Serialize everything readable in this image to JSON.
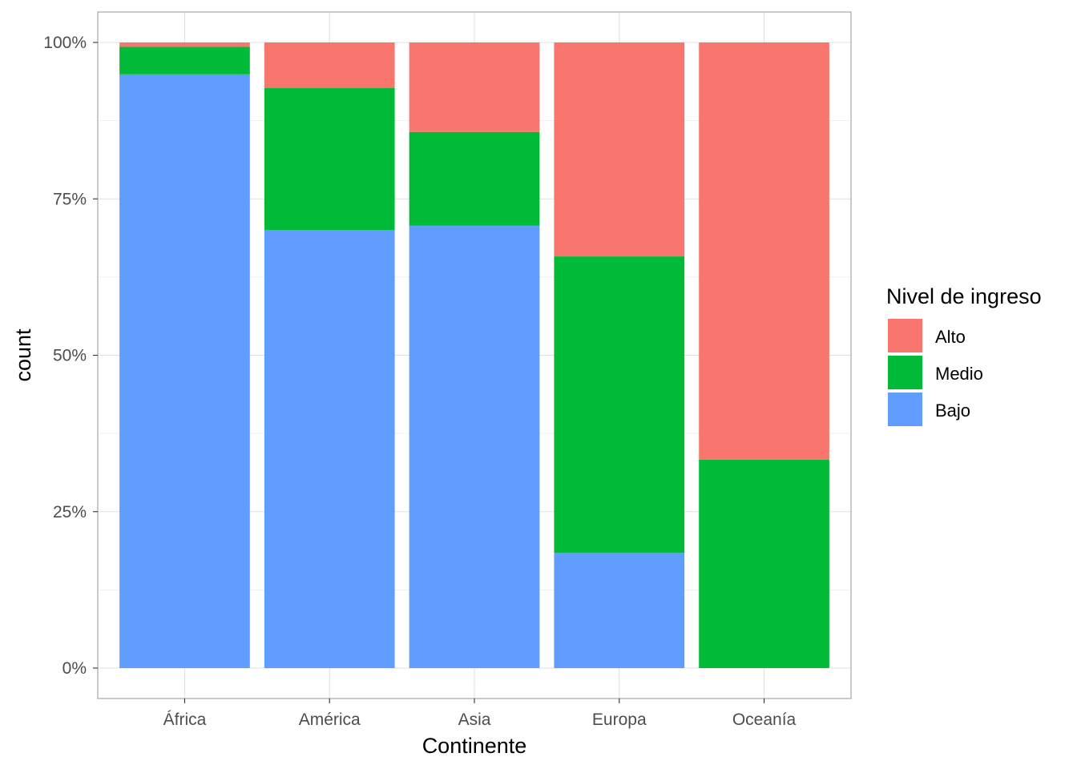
{
  "chart_data": {
    "type": "bar",
    "stacked": true,
    "normalized": true,
    "xlabel": "Continente",
    "ylabel": "count",
    "ylim": [
      0,
      1
    ],
    "y_ticks": [
      {
        "value": 0,
        "label": "0%"
      },
      {
        "value": 0.25,
        "label": "25%"
      },
      {
        "value": 0.5,
        "label": "50%"
      },
      {
        "value": 0.75,
        "label": "75%"
      },
      {
        "value": 1,
        "label": "100%"
      }
    ],
    "categories": [
      "África",
      "América",
      "Asia",
      "Europa",
      "Oceanía"
    ],
    "series": [
      {
        "name": "Bajo",
        "color": "#619CFF",
        "values": [
          0.949,
          0.7,
          0.707,
          0.184,
          0.0
        ]
      },
      {
        "name": "Medio",
        "color": "#00BA38",
        "values": [
          0.044,
          0.227,
          0.15,
          0.474,
          0.333
        ]
      },
      {
        "name": "Alto",
        "color": "#F8766D",
        "values": [
          0.007,
          0.073,
          0.143,
          0.342,
          0.667
        ]
      }
    ],
    "legend": {
      "title": "Nivel de ingreso",
      "position": "right",
      "order": [
        "Alto",
        "Medio",
        "Bajo"
      ]
    },
    "grid": true,
    "panel_border": true
  }
}
